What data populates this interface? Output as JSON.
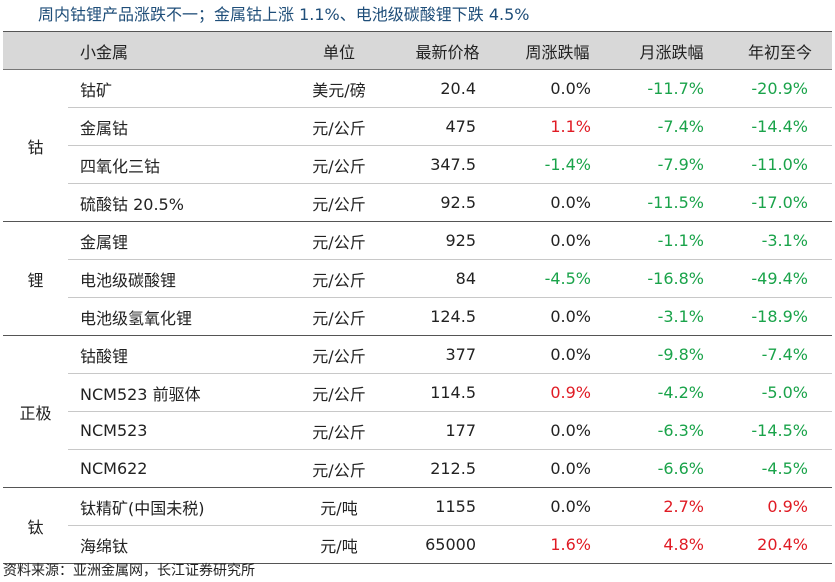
{
  "title": "周内钴锂产品涨跌不一；金属钴上涨 1.1%、电池级碳酸锂下跌 4.5%",
  "headers": [
    "",
    "小金属",
    "单位",
    "最新价格",
    "周涨跌幅",
    "月涨跌幅",
    "年初至今"
  ],
  "groups": [
    {
      "name": "钴",
      "rows": [
        {
          "name": "钴矿",
          "unit": "美元/磅",
          "price": "20.4",
          "week": "0.0%",
          "month": "-11.7%",
          "ytd": "-20.9%"
        },
        {
          "name": "金属钴",
          "unit": "元/公斤",
          "price": "475",
          "week": "1.1%",
          "month": "-7.4%",
          "ytd": "-14.4%"
        },
        {
          "name": "四氧化三钴",
          "unit": "元/公斤",
          "price": "347.5",
          "week": "-1.4%",
          "month": "-7.9%",
          "ytd": "-11.0%"
        },
        {
          "name": "硫酸钴 20.5%",
          "unit": "元/公斤",
          "price": "92.5",
          "week": "0.0%",
          "month": "-11.5%",
          "ytd": "-17.0%"
        }
      ]
    },
    {
      "name": "锂",
      "rows": [
        {
          "name": "金属锂",
          "unit": "元/公斤",
          "price": "925",
          "week": "0.0%",
          "month": "-1.1%",
          "ytd": "-3.1%"
        },
        {
          "name": "电池级碳酸锂",
          "unit": "元/公斤",
          "price": "84",
          "week": "-4.5%",
          "month": "-16.8%",
          "ytd": "-49.4%"
        },
        {
          "name": "电池级氢氧化锂",
          "unit": "元/公斤",
          "price": "124.5",
          "week": "0.0%",
          "month": "-3.1%",
          "ytd": "-18.9%"
        }
      ]
    },
    {
      "name": "正极",
      "rows": [
        {
          "name": "钴酸锂",
          "unit": "元/公斤",
          "price": "377",
          "week": "0.0%",
          "month": "-9.8%",
          "ytd": "-7.4%"
        },
        {
          "name": "NCM523 前驱体",
          "unit": "元/公斤",
          "price": "114.5",
          "week": "0.9%",
          "month": "-4.2%",
          "ytd": "-5.0%"
        },
        {
          "name": "NCM523",
          "unit": "元/公斤",
          "price": "177",
          "week": "0.0%",
          "month": "-6.3%",
          "ytd": "-14.5%"
        },
        {
          "name": "NCM622",
          "unit": "元/公斤",
          "price": "212.5",
          "week": "0.0%",
          "month": "-6.6%",
          "ytd": "-4.5%"
        }
      ]
    },
    {
      "name": "钛",
      "rows": [
        {
          "name": "钛精矿(中国未税)",
          "unit": "元/吨",
          "price": "1155",
          "week": "0.0%",
          "month": "2.7%",
          "ytd": "0.9%"
        },
        {
          "name": "海绵钛",
          "unit": "元/吨",
          "price": "65000",
          "week": "1.6%",
          "month": "4.8%",
          "ytd": "20.4%"
        }
      ]
    }
  ],
  "source": "资料来源：亚洲金属网，长江证券研究所",
  "colors": {
    "up": "#e01b24",
    "down": "#1aa34a",
    "flat": "#222222",
    "title": "#1f4e79",
    "header_bg": "#d8d8d8"
  }
}
